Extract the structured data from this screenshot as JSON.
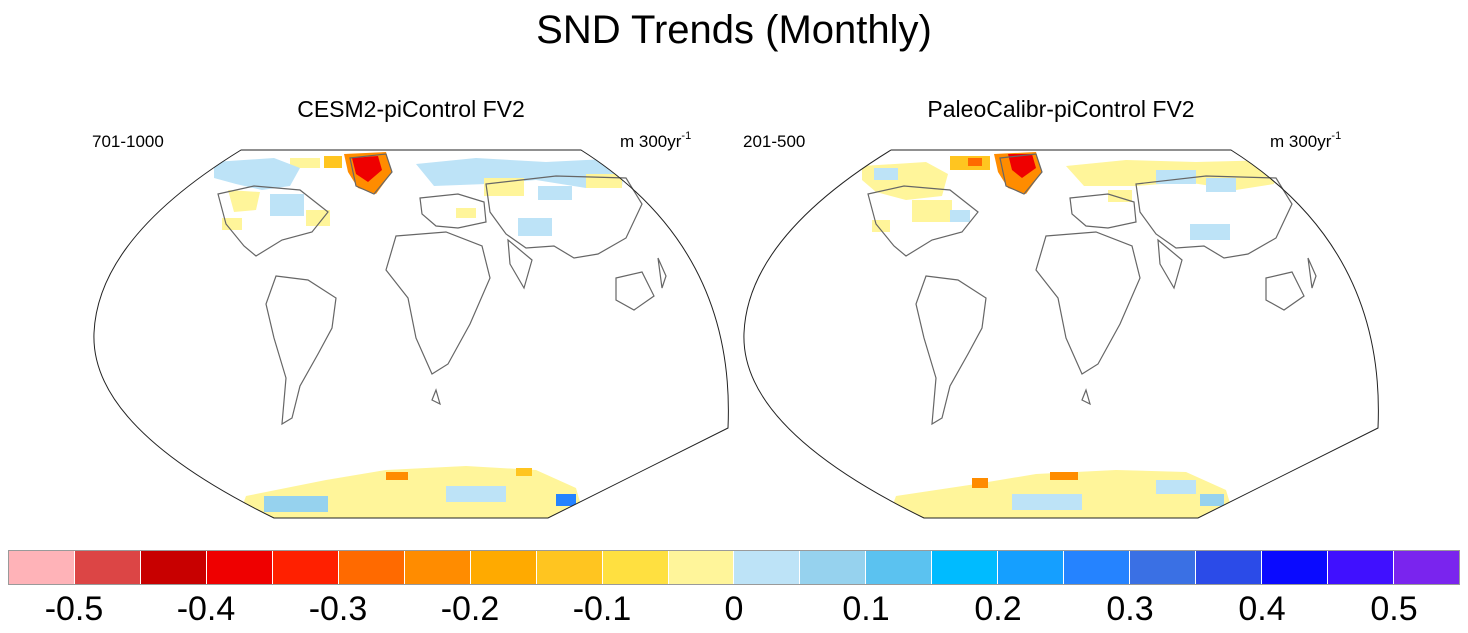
{
  "figure": {
    "title": "SND Trends (Monthly)"
  },
  "panels": [
    {
      "title": "CESM2-piControl FV2",
      "period": "701-1000",
      "units_base": "m 300yr",
      "units_exp": "-1"
    },
    {
      "title": "PaleoCalibr-piControl FV2",
      "period": "201-500",
      "units_base": "m 300yr",
      "units_exp": "-1"
    }
  ],
  "colorbar": {
    "colors": [
      "#ffb3b8",
      "#dc4545",
      "#c80000",
      "#ef0000",
      "#ff2000",
      "#ff6a00",
      "#ff8c00",
      "#ffaa00",
      "#ffc520",
      "#ffe040",
      "#fff59a",
      "#bde3f7",
      "#96d2ee",
      "#5bc2f0",
      "#00bbff",
      "#159fff",
      "#2583ff",
      "#3a70e4",
      "#2b4be8",
      "#0a0aff",
      "#4010ff",
      "#7a24ee"
    ],
    "labels": [
      "-0.5",
      "-0.4",
      "-0.3",
      "-0.2",
      "-0.1",
      "0",
      "0.1",
      "0.2",
      "0.3",
      "0.4",
      "0.5"
    ]
  },
  "chart_data": {
    "type": "map",
    "title": "SND Trends (Monthly)",
    "variable": "SND",
    "units": "m 300yr-1",
    "panels": [
      {
        "title": "CESM2-piControl FV2",
        "period": "701-1000"
      },
      {
        "title": "PaleoCalibr-piControl FV2",
        "period": "201-500"
      }
    ],
    "colorbar_labels": [
      -0.5,
      -0.4,
      -0.3,
      -0.2,
      -0.1,
      0,
      0.1,
      0.2,
      0.3,
      0.4,
      0.5
    ]
  }
}
